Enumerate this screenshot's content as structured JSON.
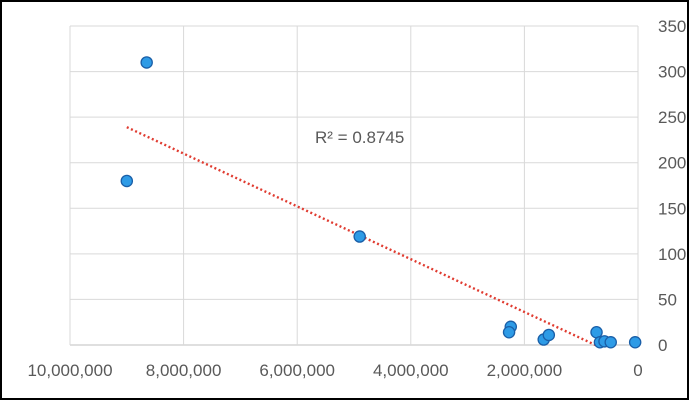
{
  "chart_data": {
    "type": "scatter",
    "title": "",
    "xlabel": "",
    "ylabel": "",
    "x_reversed": true,
    "y_axis_side": "right",
    "grid": true,
    "xlim": [
      0,
      10000000
    ],
    "ylim": [
      0,
      350
    ],
    "x_ticks": [
      10000000,
      8000000,
      6000000,
      4000000,
      2000000,
      0
    ],
    "x_tick_labels": [
      "10,000,000",
      "8,000,000",
      "6,000,000",
      "4,000,000",
      "2,000,000",
      "0"
    ],
    "y_ticks": [
      0,
      50,
      100,
      150,
      200,
      250,
      300,
      350
    ],
    "y_tick_labels": [
      "0",
      "50",
      "100",
      "150",
      "200",
      "250",
      "300",
      "350"
    ],
    "points": [
      {
        "x": 8650000,
        "y": 310
      },
      {
        "x": 9000000,
        "y": 180
      },
      {
        "x": 4900000,
        "y": 119
      },
      {
        "x": 2240000,
        "y": 20
      },
      {
        "x": 2270000,
        "y": 14
      },
      {
        "x": 1660000,
        "y": 6
      },
      {
        "x": 1570000,
        "y": 11
      },
      {
        "x": 730000,
        "y": 14
      },
      {
        "x": 670000,
        "y": 3
      },
      {
        "x": 590000,
        "y": 4
      },
      {
        "x": 480000,
        "y": 3
      },
      {
        "x": 50000,
        "y": 3
      }
    ],
    "trendline": {
      "type": "linear",
      "from": {
        "x": 9000000,
        "y": 239
      },
      "to": {
        "x": 750000,
        "y": 0
      },
      "label": "R² = 0.8745",
      "label_at": {
        "x": 4900000,
        "y": 228
      },
      "color": "#e03c31"
    },
    "marker_color": "#2e9be6",
    "marker_edge": "#1a5fa8",
    "grid_color": "#d9d9d9"
  }
}
